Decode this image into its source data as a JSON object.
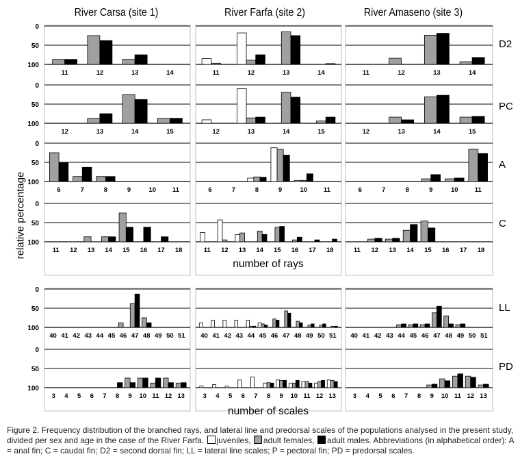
{
  "chart_data": {
    "type": "bar",
    "ylabel": "relative percentage",
    "ylim": [
      0,
      100
    ],
    "yticks": [
      "0",
      "50",
      "100"
    ],
    "columns": [
      "River Carsa (site 1)",
      "River Farfa (site 2)",
      "River Amaseno (site 3)"
    ],
    "groups": [
      {
        "xlabel": "number of rays",
        "rows": [
          "D2",
          "PC",
          "A",
          "C"
        ]
      },
      {
        "xlabel": "number of scales",
        "rows": [
          "LL",
          "PD"
        ]
      }
    ],
    "legend": [
      {
        "name": "juveniles",
        "color": "#ffffff"
      },
      {
        "name": "adult females",
        "color": "#a0a0a0"
      },
      {
        "name": "adult males",
        "color": "#000000"
      }
    ],
    "panels": [
      {
        "fin": "D2",
        "site": "River Carsa (site 1)",
        "categories": [
          "11",
          "12",
          "13",
          "14"
        ],
        "series": {
          "adult females": [
            13,
            75,
            13,
            0
          ],
          "adult males": [
            13,
            62,
            25,
            0
          ]
        }
      },
      {
        "fin": "D2",
        "site": "River Farfa (site 2)",
        "categories": [
          "11",
          "12",
          "13",
          "14"
        ],
        "series": {
          "juveniles": [
            15,
            82,
            0,
            0
          ],
          "adult females": [
            3,
            11,
            85,
            0
          ],
          "adult males": [
            0,
            25,
            75,
            2
          ]
        }
      },
      {
        "fin": "D2",
        "site": "River Amaseno (site 3)",
        "categories": [
          "11",
          "12",
          "13",
          "14"
        ],
        "series": {
          "adult females": [
            0,
            16,
            76,
            7
          ],
          "adult males": [
            0,
            0,
            81,
            18
          ]
        }
      },
      {
        "fin": "PC",
        "site": "River Carsa (site 1)",
        "categories": [
          "12",
          "13",
          "14",
          "15"
        ],
        "series": {
          "adult females": [
            0,
            13,
            75,
            13
          ],
          "adult males": [
            0,
            25,
            62,
            13
          ]
        }
      },
      {
        "fin": "PC",
        "site": "River Farfa (site 2)",
        "categories": [
          "12",
          "13",
          "14",
          "15"
        ],
        "series": {
          "juveniles": [
            9,
            90,
            0,
            0
          ],
          "adult females": [
            0,
            14,
            81,
            6
          ],
          "adult males": [
            0,
            16,
            68,
            16
          ]
        }
      },
      {
        "fin": "PC",
        "site": "River Amaseno (site 3)",
        "categories": [
          "12",
          "13",
          "14",
          "15"
        ],
        "series": {
          "adult females": [
            0,
            16,
            69,
            16
          ],
          "adult males": [
            0,
            9,
            73,
            18
          ]
        }
      },
      {
        "fin": "A",
        "site": "River Carsa (site 1)",
        "categories": [
          "6",
          "7",
          "8",
          "9",
          "10",
          "11"
        ],
        "series": {
          "adult females": [
            75,
            13,
            13,
            0,
            0,
            0
          ],
          "adult males": [
            50,
            37,
            13,
            0,
            0,
            0
          ]
        }
      },
      {
        "fin": "A",
        "site": "River Farfa (site 2)",
        "categories": [
          "6",
          "7",
          "8",
          "9",
          "10",
          "11"
        ],
        "series": {
          "juveniles": [
            0,
            0,
            9,
            88,
            3,
            0
          ],
          "adult females": [
            0,
            0,
            12,
            84,
            3,
            0
          ],
          "adult males": [
            0,
            0,
            11,
            69,
            20,
            0
          ]
        }
      },
      {
        "fin": "A",
        "site": "River Amaseno (site 3)",
        "categories": [
          "6",
          "7",
          "8",
          "9",
          "10",
          "11"
        ],
        "series": {
          "adult females": [
            0,
            0,
            0,
            7,
            7,
            84
          ],
          "adult males": [
            0,
            0,
            0,
            18,
            9,
            73
          ]
        }
      },
      {
        "fin": "C",
        "site": "River Carsa (site 1)",
        "categories": [
          "11",
          "12",
          "13",
          "14",
          "15",
          "16",
          "17",
          "18"
        ],
        "series": {
          "adult females": [
            0,
            0,
            13,
            13,
            75,
            0,
            0,
            0
          ],
          "adult males": [
            0,
            0,
            0,
            13,
            38,
            38,
            13,
            0
          ]
        }
      },
      {
        "fin": "C",
        "site": "River Farfa (site 2)",
        "categories": [
          "11",
          "12",
          "13",
          "14",
          "15",
          "16",
          "17",
          "18"
        ],
        "series": {
          "juveniles": [
            24,
            57,
            19,
            0,
            0,
            0,
            0,
            0
          ],
          "adult females": [
            0,
            5,
            23,
            28,
            38,
            5,
            0,
            0
          ],
          "adult males": [
            0,
            0,
            0,
            19,
            40,
            12,
            5,
            7
          ]
        }
      },
      {
        "fin": "C",
        "site": "River Amaseno (site 3)",
        "categories": [
          "11",
          "12",
          "13",
          "14",
          "15",
          "16",
          "17",
          "18"
        ],
        "series": {
          "adult females": [
            0,
            7,
            7,
            30,
            54,
            0,
            0,
            0
          ],
          "adult males": [
            0,
            9,
            9,
            45,
            36,
            0,
            0,
            0
          ]
        }
      },
      {
        "fin": "LL",
        "site": "River Carsa (site 1)",
        "categories": [
          "40",
          "41",
          "42",
          "43",
          "44",
          "45",
          "46",
          "47",
          "48",
          "49",
          "50",
          "51"
        ],
        "series": {
          "adult females": [
            0,
            0,
            0,
            0,
            0,
            0,
            12,
            62,
            25,
            0,
            0,
            0
          ],
          "adult males": [
            0,
            0,
            0,
            0,
            0,
            0,
            0,
            87,
            12,
            0,
            0,
            0
          ]
        }
      },
      {
        "fin": "LL",
        "site": "River Farfa (site 2)",
        "categories": [
          "40",
          "41",
          "42",
          "43",
          "44",
          "45",
          "46",
          "47",
          "48",
          "49",
          "50",
          "51"
        ],
        "series": {
          "juveniles": [
            12,
            19,
            19,
            19,
            19,
            12,
            0,
            0,
            0,
            0,
            0,
            0
          ],
          "adult females": [
            0,
            0,
            0,
            0,
            3,
            9,
            22,
            43,
            16,
            6,
            6,
            3
          ],
          "adult males": [
            0,
            0,
            0,
            0,
            3,
            6,
            19,
            37,
            12,
            9,
            9,
            3
          ]
        }
      },
      {
        "fin": "LL",
        "site": "River Amaseno (site 3)",
        "categories": [
          "40",
          "41",
          "42",
          "43",
          "44",
          "45",
          "46",
          "47",
          "48",
          "49",
          "50",
          "51"
        ],
        "series": {
          "adult females": [
            0,
            0,
            0,
            0,
            7,
            7,
            7,
            38,
            30,
            7,
            0,
            0
          ],
          "adult males": [
            0,
            0,
            0,
            0,
            9,
            9,
            9,
            55,
            9,
            9,
            0,
            0
          ]
        }
      },
      {
        "fin": "PD",
        "site": "River Carsa (site 1)",
        "categories": [
          "3",
          "4",
          "5",
          "6",
          "7",
          "8",
          "9",
          "10",
          "11",
          "12",
          "13"
        ],
        "series": {
          "adult females": [
            0,
            0,
            0,
            0,
            0,
            0,
            25,
            25,
            12,
            25,
            12
          ],
          "adult males": [
            0,
            0,
            0,
            0,
            0,
            13,
            13,
            25,
            25,
            13,
            13
          ]
        }
      },
      {
        "fin": "PD",
        "site": "River Farfa (site 2)",
        "categories": [
          "3",
          "4",
          "5",
          "6",
          "7",
          "8",
          "9",
          "10",
          "11",
          "12",
          "13"
        ],
        "series": {
          "juveniles": [
            4,
            8,
            4,
            20,
            28,
            12,
            20,
            12,
            16,
            12,
            20
          ],
          "adult females": [
            0,
            0,
            0,
            0,
            0,
            13,
            19,
            12,
            16,
            16,
            19
          ],
          "adult males": [
            0,
            0,
            0,
            0,
            0,
            12,
            19,
            19,
            12,
            19,
            16
          ]
        }
      },
      {
        "fin": "PD",
        "site": "River Amaseno (site 3)",
        "categories": [
          "3",
          "4",
          "5",
          "6",
          "7",
          "8",
          "9",
          "10",
          "11",
          "12",
          "13"
        ],
        "series": {
          "adult females": [
            0,
            0,
            0,
            0,
            0,
            0,
            7,
            23,
            30,
            30,
            7
          ],
          "adult males": [
            0,
            0,
            0,
            0,
            0,
            0,
            9,
            18,
            36,
            27,
            9
          ]
        }
      }
    ]
  },
  "caption": {
    "text": "Figure 2. Frequency distribution of the branched rays, and lateral line and predorsal scales of the populations analysed in the present study, divided per sex and age in the case of the River Farfa.",
    "legend_juveniles": "juveniles,",
    "legend_females": "adult females,",
    "legend_males": "adult males.",
    "abbreviations": "Abbreviations (in alphabetical order): A = anal fin; C = caudal fin; D2 = second dorsal fin; LL = lateral line scales; P = pectoral fin; PD = predorsal scales."
  }
}
